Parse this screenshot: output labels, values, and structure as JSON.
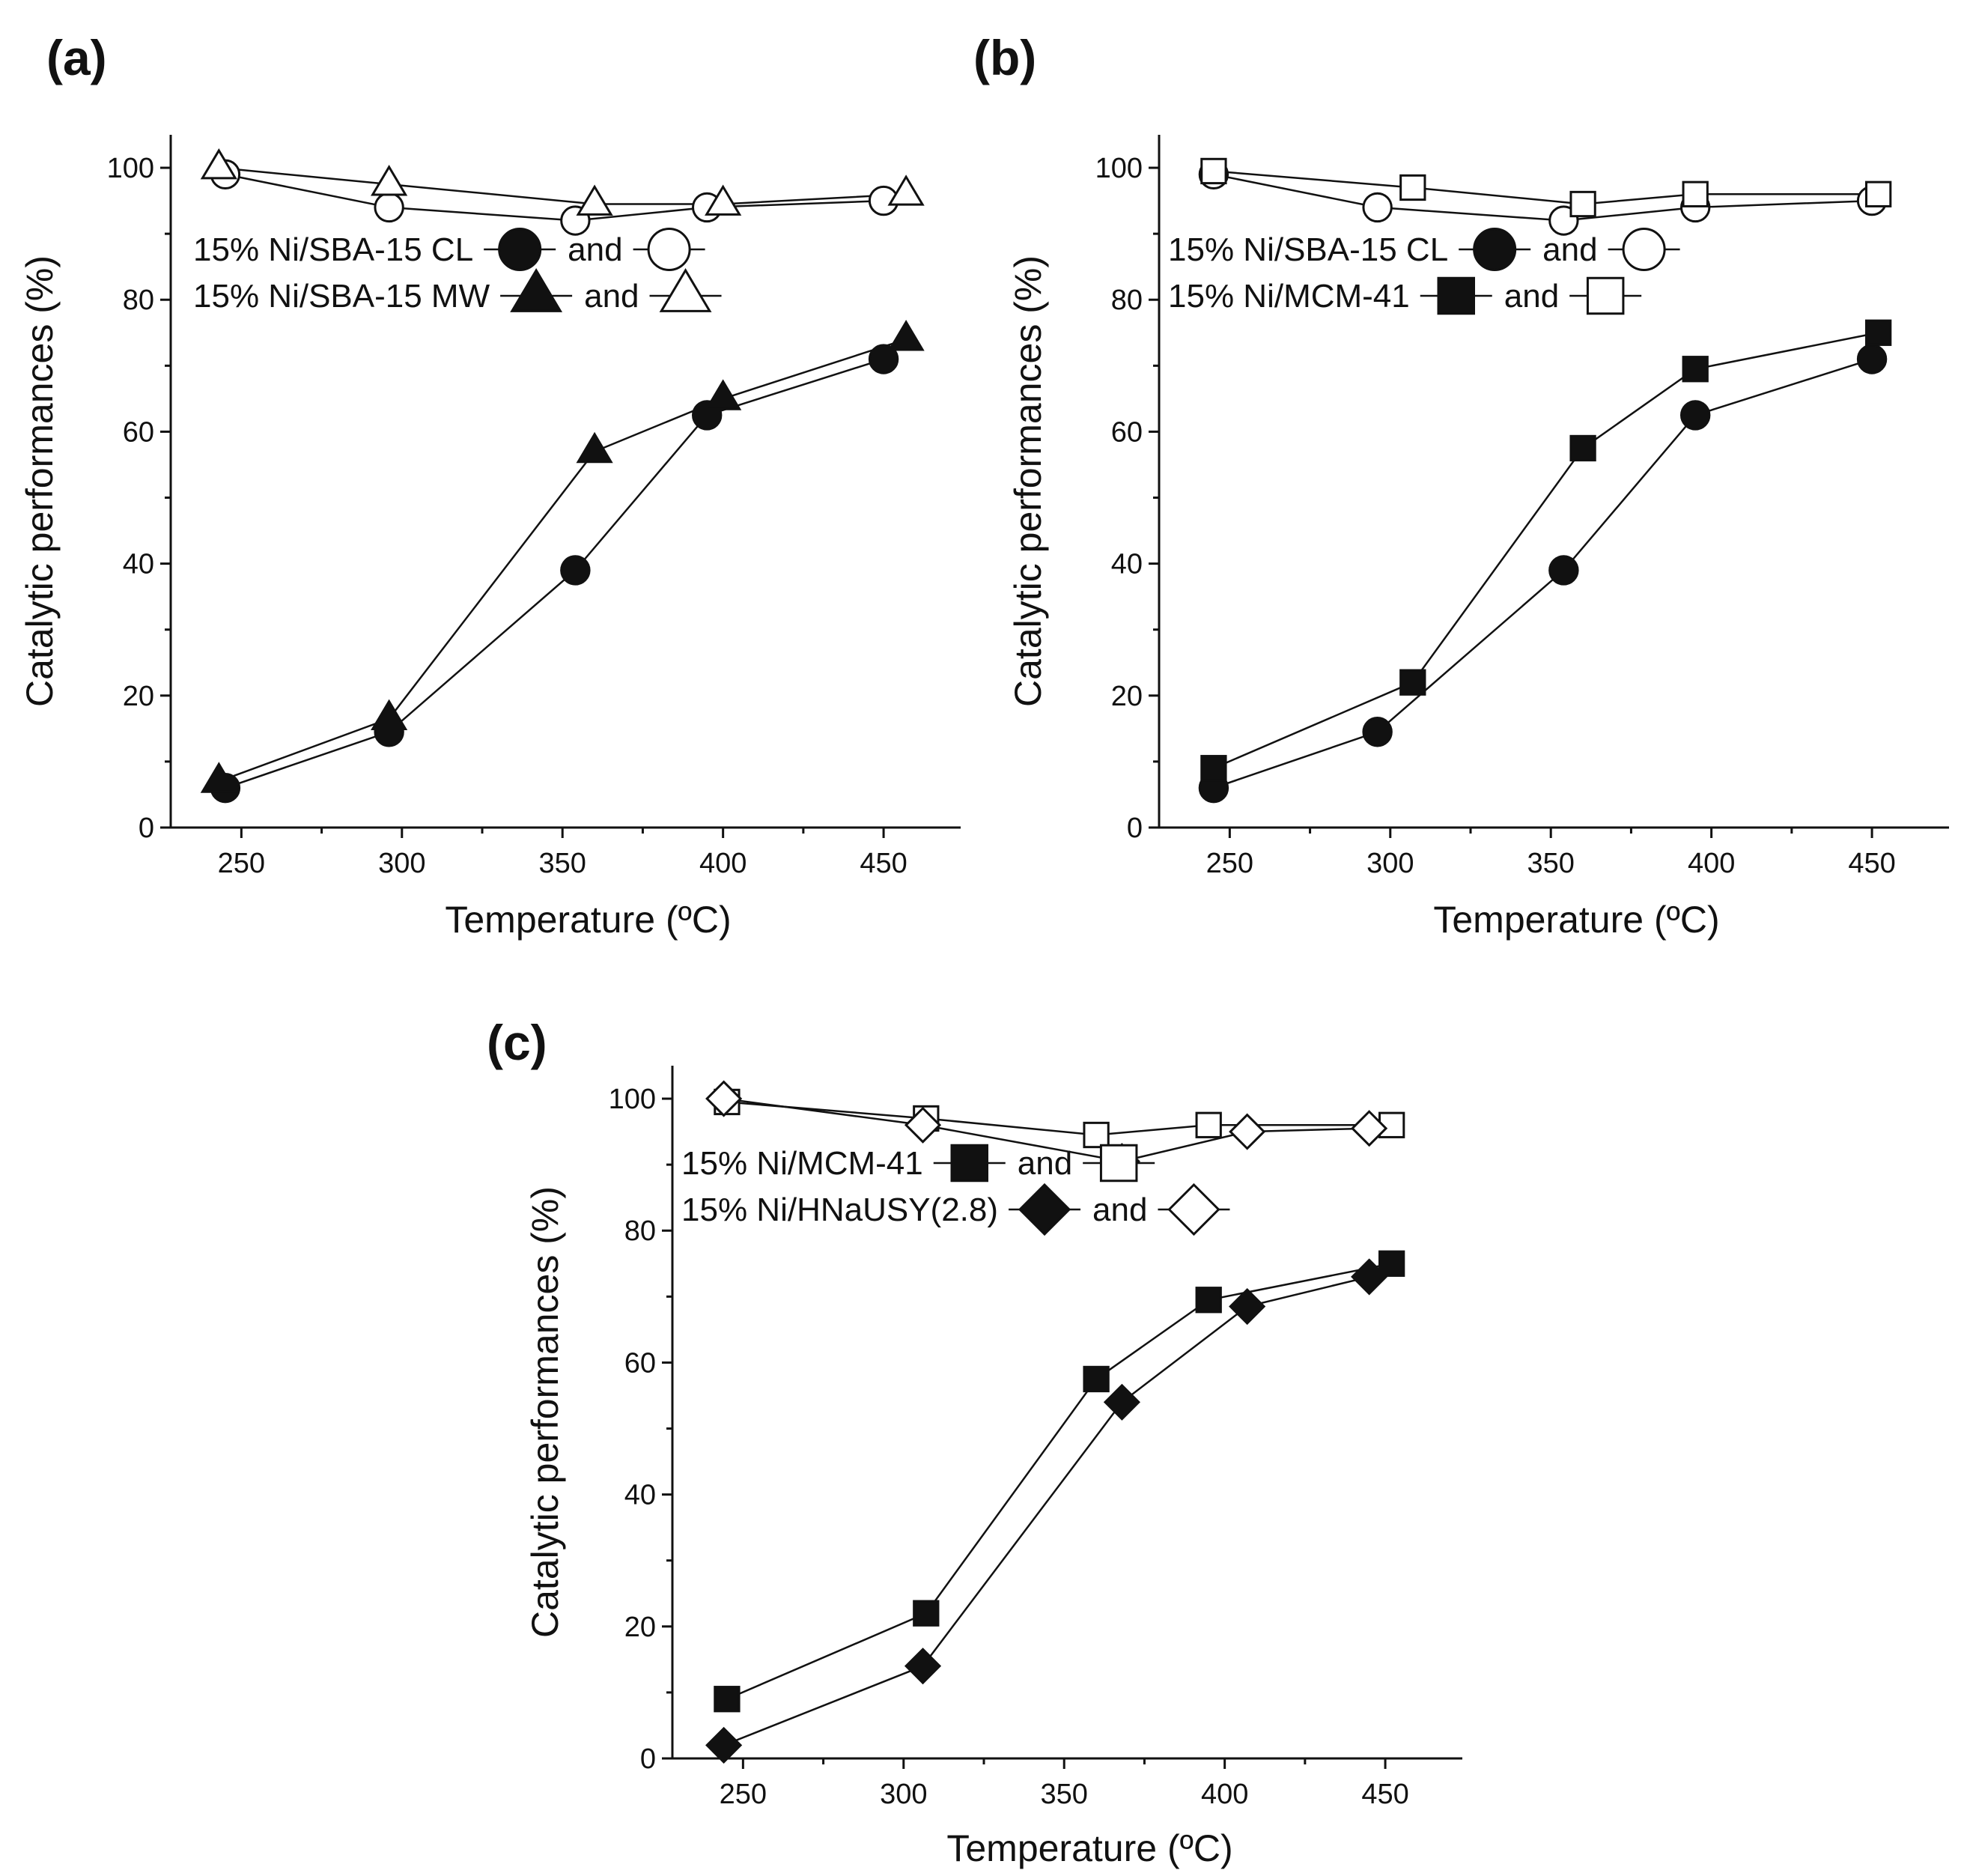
{
  "chart_data": [
    {
      "panel": "(a)",
      "type": "line",
      "xlabel": "Temperature (ºC)",
      "ylabel": "Catalytic performances (%)",
      "xlim": [
        228,
        474
      ],
      "ylim": [
        0,
        105
      ],
      "xticks": [
        250,
        300,
        350,
        400,
        450
      ],
      "yticks": [
        0,
        20,
        40,
        60,
        80,
        100
      ],
      "legend": [
        {
          "label": "15% Ni/SBA-15 CL",
          "joiner": "and",
          "filled": "circle",
          "open": "circle"
        },
        {
          "label": "15% Ni/SBA-15 MW",
          "joiner": "and",
          "filled": "triangle",
          "open": "triangle"
        }
      ],
      "series": [
        {
          "name": "15% Ni/SBA-15 CL (filled)",
          "marker": "circle",
          "filled": true,
          "x": [
            245,
            296,
            354,
            395,
            450
          ],
          "y": [
            6,
            14.5,
            39,
            62.5,
            71
          ]
        },
        {
          "name": "15% Ni/SBA-15 CL (open)",
          "marker": "circle",
          "filled": false,
          "x": [
            245,
            296,
            354,
            395,
            450
          ],
          "y": [
            99,
            94,
            92,
            94,
            95
          ]
        },
        {
          "name": "15% Ni/SBA-15 MW (filled)",
          "marker": "triangle",
          "filled": true,
          "x": [
            243,
            296,
            360,
            400,
            457
          ],
          "y": [
            7,
            16.5,
            57,
            65,
            74
          ]
        },
        {
          "name": "15% Ni/SBA-15 MW (open)",
          "marker": "triangle",
          "filled": false,
          "x": [
            243,
            296,
            360,
            400,
            457
          ],
          "y": [
            100,
            97.5,
            94.5,
            94.5,
            96
          ]
        }
      ]
    },
    {
      "panel": "(b)",
      "type": "line",
      "xlabel": "Temperature (ºC)",
      "ylabel": "Catalytic performances (%)",
      "xlim": [
        228,
        474
      ],
      "ylim": [
        0,
        105
      ],
      "xticks": [
        250,
        300,
        350,
        400,
        450
      ],
      "yticks": [
        0,
        20,
        40,
        60,
        80,
        100
      ],
      "legend": [
        {
          "label": "15% Ni/SBA-15 CL",
          "joiner": "and",
          "filled": "circle",
          "open": "circle"
        },
        {
          "label": "15% Ni/MCM-41",
          "joiner": "and",
          "filled": "square",
          "open": "square"
        }
      ],
      "series": [
        {
          "name": "15% Ni/SBA-15 CL (filled)",
          "marker": "circle",
          "filled": true,
          "x": [
            245,
            296,
            354,
            395,
            450
          ],
          "y": [
            6,
            14.5,
            39,
            62.5,
            71
          ]
        },
        {
          "name": "15% Ni/SBA-15 CL (open)",
          "marker": "circle",
          "filled": false,
          "x": [
            245,
            296,
            354,
            395,
            450
          ],
          "y": [
            99,
            94,
            92,
            94,
            95
          ]
        },
        {
          "name": "15% Ni/MCM-41 (filled)",
          "marker": "square",
          "filled": true,
          "x": [
            245,
            307,
            360,
            395,
            452
          ],
          "y": [
            9,
            22,
            57.5,
            69.5,
            75
          ]
        },
        {
          "name": "15% Ni/MCM-41 (open)",
          "marker": "square",
          "filled": false,
          "x": [
            245,
            307,
            360,
            395,
            452
          ],
          "y": [
            99.5,
            97,
            94.5,
            96,
            96
          ]
        }
      ]
    },
    {
      "panel": "(c)",
      "type": "line",
      "xlabel": "Temperature (ºC)",
      "ylabel": "Catalytic performances (%)",
      "xlim": [
        228,
        474
      ],
      "ylim": [
        0,
        105
      ],
      "xticks": [
        250,
        300,
        350,
        400,
        450
      ],
      "yticks": [
        0,
        20,
        40,
        60,
        80,
        100
      ],
      "legend": [
        {
          "label": "15% Ni/MCM-41",
          "joiner": "and",
          "filled": "square",
          "open": "square"
        },
        {
          "label": "15% Ni/HNaUSY(2.8)",
          "joiner": "and",
          "filled": "diamond",
          "open": "diamond"
        }
      ],
      "series": [
        {
          "name": "15% Ni/MCM-41 (filled)",
          "marker": "square",
          "filled": true,
          "x": [
            245,
            307,
            360,
            395,
            452
          ],
          "y": [
            9,
            22,
            57.5,
            69.5,
            75
          ]
        },
        {
          "name": "15% Ni/MCM-41 (open)",
          "marker": "square",
          "filled": false,
          "x": [
            245,
            307,
            360,
            395,
            452
          ],
          "y": [
            99.5,
            97,
            94.5,
            96,
            96
          ]
        },
        {
          "name": "15% Ni/HNaUSY(2.8) (filled)",
          "marker": "diamond",
          "filled": true,
          "x": [
            244,
            306,
            368,
            407,
            445
          ],
          "y": [
            2,
            14,
            54,
            68.5,
            73
          ]
        },
        {
          "name": "15% Ni/HNaUSY(2.8) (open)",
          "marker": "diamond",
          "filled": false,
          "x": [
            244,
            306,
            368,
            407,
            445
          ],
          "y": [
            100,
            96,
            90.5,
            95,
            95.5
          ]
        }
      ]
    }
  ]
}
